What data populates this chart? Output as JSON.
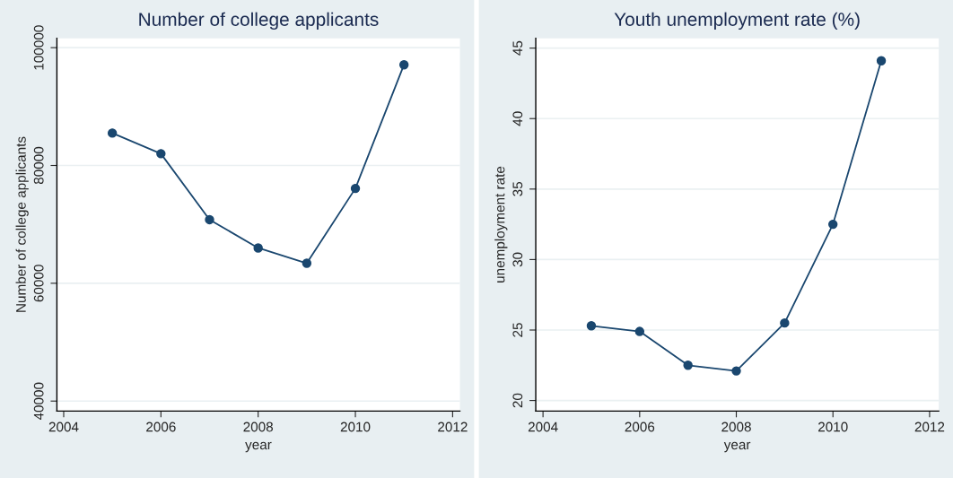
{
  "chart_data": [
    {
      "type": "line",
      "title": "Number of college applicants",
      "xlabel": "year",
      "ylabel": "Number of college applicants",
      "x": [
        2005,
        2006,
        2007,
        2008,
        2009,
        2010,
        2011
      ],
      "series": [
        {
          "color": "#1a476f",
          "values": [
            85500,
            82000,
            70800,
            66000,
            63400,
            76100,
            97100
          ]
        }
      ],
      "xlim": [
        2003.86,
        2012.15
      ],
      "xticks": [
        2004,
        2006,
        2008,
        2010,
        2012
      ],
      "ylim": [
        38300,
        101600
      ],
      "yticks": [
        40000,
        60000,
        80000,
        100000
      ],
      "grid": "y",
      "marker": "circle",
      "line_style": "solid"
    },
    {
      "type": "line",
      "title": "Youth unemployment rate (%)",
      "xlabel": "year",
      "ylabel": "unemployment rate",
      "x": [
        2005,
        2006,
        2007,
        2008,
        2009,
        2010,
        2011
      ],
      "series": [
        {
          "color": "#1a476f",
          "values": [
            25.3,
            24.9,
            22.5,
            22.1,
            25.5,
            32.5,
            44.1
          ]
        }
      ],
      "xlim": [
        2003.85,
        2012.19
      ],
      "xticks": [
        2004,
        2006,
        2008,
        2010,
        2012
      ],
      "ylim": [
        19.25,
        45.7
      ],
      "yticks": [
        20,
        25,
        30,
        35,
        40,
        45
      ],
      "grid": "y",
      "marker": "circle",
      "line_style": "solid"
    }
  ]
}
